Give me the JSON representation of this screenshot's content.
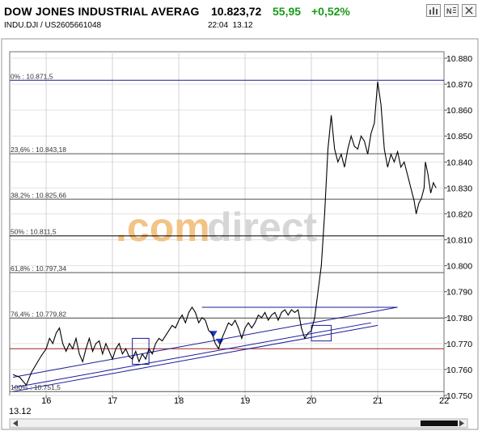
{
  "header": {
    "title": "DOW JONES INDUSTRIAL AVERAG",
    "price": "10.823,72",
    "change": "55,95",
    "change_pct": "+0,52%",
    "symbol": "INDU.DJI  /  US2605661048",
    "time": "22:04",
    "date": "13.12",
    "icons": [
      "bar-chart-icon",
      "news-icon",
      "close-icon"
    ]
  },
  "colors": {
    "up": "#1a9a1a",
    "line": "#000000",
    "trend": "#1a1a9a",
    "fib": "#555555",
    "watermark_orange": "#f5c98a",
    "watermark_gray": "#d8d8d8"
  },
  "chart_data": {
    "type": "line",
    "title": "",
    "xlabel": "",
    "ylabel": "",
    "x_ticks": [
      "16",
      "17",
      "18",
      "19",
      "20",
      "21",
      "22"
    ],
    "x_date_label": "13.12",
    "ylim": [
      10750,
      10880
    ],
    "xlim": [
      15.45,
      22.0
    ],
    "y_ticks": [
      "10.880",
      "10.870",
      "10.860",
      "10.850",
      "10.840",
      "10.830",
      "10.820",
      "10.810",
      "10.800",
      "10.790",
      "10.780",
      "10.770",
      "10.760",
      "10.750"
    ],
    "grid": true,
    "watermark": ".comdirect",
    "fib_levels": [
      {
        "label": "0% : 10.871,5",
        "value": 10871.5
      },
      {
        "label": "23,6% : 10.843,18",
        "value": 10843.18
      },
      {
        "label": "38,2% : 10.825,66",
        "value": 10825.66
      },
      {
        "label": "50% : 10.811,5",
        "value": 10811.5
      },
      {
        "label": "61,8% : 10.797,34",
        "value": 10797.34
      },
      {
        "label": "76,4% : 10.779,82",
        "value": 10779.82
      },
      {
        "label": "100% : 10.751,5",
        "value": 10751.5
      }
    ],
    "ref_level": 10768,
    "series": [
      {
        "values": [
          [
            15.5,
            10758
          ],
          [
            15.6,
            10757
          ],
          [
            15.7,
            10754
          ],
          [
            15.78,
            10759
          ],
          [
            15.85,
            10762
          ],
          [
            15.92,
            10765
          ],
          [
            16.0,
            10768
          ],
          [
            16.05,
            10772
          ],
          [
            16.1,
            10770
          ],
          [
            16.15,
            10774
          ],
          [
            16.2,
            10776
          ],
          [
            16.25,
            10770
          ],
          [
            16.3,
            10767
          ],
          [
            16.35,
            10770
          ],
          [
            16.4,
            10768
          ],
          [
            16.45,
            10772
          ],
          [
            16.5,
            10766
          ],
          [
            16.55,
            10763
          ],
          [
            16.6,
            10768
          ],
          [
            16.65,
            10772
          ],
          [
            16.7,
            10767
          ],
          [
            16.75,
            10770
          ],
          [
            16.8,
            10771
          ],
          [
            16.85,
            10766
          ],
          [
            16.9,
            10770
          ],
          [
            16.95,
            10767
          ],
          [
            17.0,
            10764
          ],
          [
            17.05,
            10768
          ],
          [
            17.1,
            10770
          ],
          [
            17.15,
            10766
          ],
          [
            17.2,
            10768
          ],
          [
            17.25,
            10765
          ],
          [
            17.3,
            10764
          ],
          [
            17.35,
            10767
          ],
          [
            17.4,
            10763
          ],
          [
            17.45,
            10766
          ],
          [
            17.5,
            10764
          ],
          [
            17.55,
            10768
          ],
          [
            17.6,
            10766
          ],
          [
            17.65,
            10770
          ],
          [
            17.7,
            10772
          ],
          [
            17.75,
            10771
          ],
          [
            17.8,
            10773
          ],
          [
            17.85,
            10775
          ],
          [
            17.9,
            10777
          ],
          [
            17.95,
            10776
          ],
          [
            18.0,
            10779
          ],
          [
            18.05,
            10781
          ],
          [
            18.1,
            10778
          ],
          [
            18.15,
            10782
          ],
          [
            18.2,
            10784
          ],
          [
            18.25,
            10782
          ],
          [
            18.3,
            10778
          ],
          [
            18.35,
            10780
          ],
          [
            18.4,
            10779
          ],
          [
            18.45,
            10775
          ],
          [
            18.5,
            10774
          ],
          [
            18.55,
            10770
          ],
          [
            18.6,
            10768
          ],
          [
            18.65,
            10772
          ],
          [
            18.7,
            10775
          ],
          [
            18.75,
            10778
          ],
          [
            18.8,
            10777
          ],
          [
            18.85,
            10779
          ],
          [
            18.9,
            10776
          ],
          [
            18.95,
            10772
          ],
          [
            19.0,
            10776
          ],
          [
            19.05,
            10778
          ],
          [
            19.1,
            10776
          ],
          [
            19.15,
            10778
          ],
          [
            19.2,
            10781
          ],
          [
            19.25,
            10780
          ],
          [
            19.3,
            10782
          ],
          [
            19.35,
            10779
          ],
          [
            19.4,
            10781
          ],
          [
            19.45,
            10782
          ],
          [
            19.5,
            10779
          ],
          [
            19.55,
            10782
          ],
          [
            19.6,
            10783
          ],
          [
            19.65,
            10781
          ],
          [
            19.7,
            10783
          ],
          [
            19.75,
            10782
          ],
          [
            19.8,
            10783
          ],
          [
            19.85,
            10776
          ],
          [
            19.9,
            10772
          ],
          [
            19.95,
            10774
          ],
          [
            20.0,
            10775
          ],
          [
            20.05,
            10780
          ],
          [
            20.1,
            10790
          ],
          [
            20.15,
            10800
          ],
          [
            20.2,
            10820
          ],
          [
            20.25,
            10845
          ],
          [
            20.3,
            10858
          ],
          [
            20.35,
            10845
          ],
          [
            20.4,
            10840
          ],
          [
            20.45,
            10843
          ],
          [
            20.5,
            10838
          ],
          [
            20.55,
            10845
          ],
          [
            20.6,
            10850
          ],
          [
            20.65,
            10846
          ],
          [
            20.7,
            10845
          ],
          [
            20.75,
            10850
          ],
          [
            20.8,
            10848
          ],
          [
            20.85,
            10843
          ],
          [
            20.9,
            10851
          ],
          [
            20.95,
            10855
          ],
          [
            21.0,
            10871
          ],
          [
            21.05,
            10862
          ],
          [
            21.1,
            10845
          ],
          [
            21.15,
            10838
          ],
          [
            21.2,
            10843
          ],
          [
            21.25,
            10840
          ],
          [
            21.3,
            10844
          ],
          [
            21.35,
            10838
          ],
          [
            21.4,
            10840
          ],
          [
            21.45,
            10835
          ],
          [
            21.5,
            10830
          ],
          [
            21.55,
            10825
          ],
          [
            21.58,
            10820
          ],
          [
            21.62,
            10824
          ],
          [
            21.66,
            10826
          ],
          [
            21.7,
            10830
          ],
          [
            21.72,
            10840
          ],
          [
            21.76,
            10835
          ],
          [
            21.8,
            10828
          ],
          [
            21.84,
            10832
          ],
          [
            21.88,
            10830
          ]
        ]
      }
    ]
  }
}
